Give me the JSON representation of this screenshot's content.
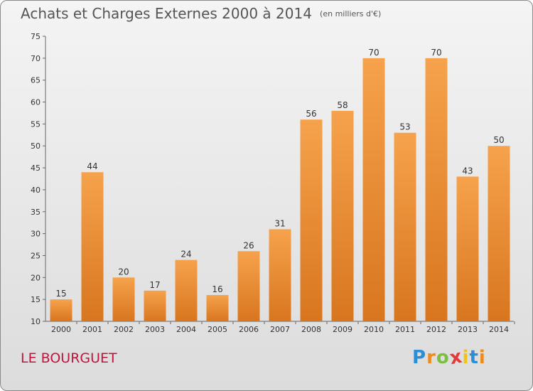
{
  "title": "Achats et Charges Externes 2000 à 2014",
  "unit": "(en milliers d'€)",
  "city": "LE BOURGUET",
  "logo": {
    "letters": [
      "P",
      "r",
      "o",
      "x",
      "i",
      "t",
      "i"
    ],
    "colors": [
      "#2a8fd6",
      "#f08a1c",
      "#7ac142",
      "#e23a3a",
      "#f2c21c",
      "#2a8fd6",
      "#f08a1c"
    ]
  },
  "colors": {
    "bar_top": "#f6a24c",
    "bar_bottom": "#d8761f",
    "label": "#333333",
    "axis": "#666666"
  },
  "chart_data": {
    "type": "bar",
    "categories": [
      "2000",
      "2001",
      "2002",
      "2003",
      "2004",
      "2005",
      "2006",
      "2007",
      "2008",
      "2009",
      "2010",
      "2011",
      "2012",
      "2013",
      "2014"
    ],
    "values": [
      15,
      44,
      20,
      17,
      24,
      16,
      26,
      31,
      56,
      58,
      70,
      53,
      70,
      43,
      50
    ],
    "ylim": [
      10,
      75
    ],
    "yticks": [
      10,
      15,
      20,
      25,
      30,
      35,
      40,
      45,
      50,
      55,
      60,
      65,
      70,
      75
    ],
    "grid": false,
    "title": "Achats et Charges Externes 2000 à 2014"
  }
}
